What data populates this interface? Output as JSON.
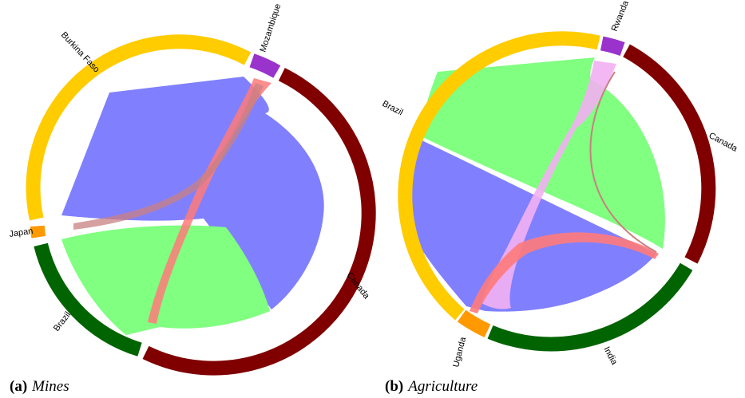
{
  "figures": [
    {
      "id": "a",
      "caption_letter": "(a)",
      "caption_title": "Mines",
      "segments": [
        {
          "name": "Mozambique",
          "color": "#9933cc"
        },
        {
          "name": "Canada",
          "color": "#800000"
        },
        {
          "name": "Brazil",
          "color": "#006400"
        },
        {
          "name": "Japan",
          "color": "#ff9900"
        },
        {
          "name": "Burkina Faso",
          "color": "#ffcc00"
        }
      ],
      "chords": [
        {
          "from": "Burkina Faso",
          "to": "Canada",
          "color": "#8080ff"
        },
        {
          "from": "Brazil",
          "to": "Canada",
          "color": "#80ff80"
        },
        {
          "from": "Mozambique",
          "to": "Brazil",
          "color": "#ff7a7a"
        },
        {
          "from": "Mozambique",
          "to": "Japan",
          "color": "#c98080"
        }
      ]
    },
    {
      "id": "b",
      "caption_letter": "(b)",
      "caption_title": "Agriculture",
      "segments": [
        {
          "name": "Rwanda",
          "color": "#9933cc"
        },
        {
          "name": "Canada",
          "color": "#800000"
        },
        {
          "name": "India",
          "color": "#006400"
        },
        {
          "name": "Uganda",
          "color": "#ff9900"
        },
        {
          "name": "Brazil",
          "color": "#ffcc00"
        }
      ],
      "chords": [
        {
          "from": "Brazil",
          "to": "Canada",
          "color": "#80ff80"
        },
        {
          "from": "Brazil",
          "to": "India",
          "color": "#8080ff"
        },
        {
          "from": "Rwanda",
          "to": "Uganda",
          "color": "#f2b0f2"
        },
        {
          "from": "Uganda",
          "to": "India",
          "color": "#ff7a7a"
        },
        {
          "from": "Canada",
          "to": "India",
          "color": "#c98080"
        }
      ]
    }
  ]
}
